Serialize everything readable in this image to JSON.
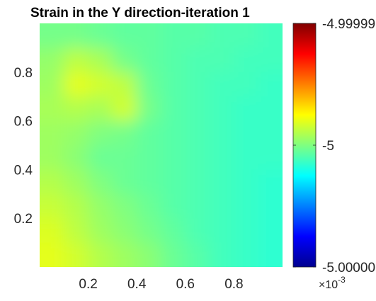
{
  "chart_data": {
    "type": "heatmap",
    "title": "Strain in the Y direction-iteration 1",
    "xlabel": "",
    "ylabel": "",
    "xlim": [
      0,
      1
    ],
    "ylim": [
      0,
      1
    ],
    "x_ticks": [
      0.2,
      0.4,
      0.6,
      0.8
    ],
    "x_tick_labels": [
      "0.2",
      "0.4",
      "0.6",
      "0.8"
    ],
    "y_ticks": [
      0.2,
      0.4,
      0.6,
      0.8
    ],
    "y_tick_labels": [
      "0.2",
      "0.4",
      "0.6",
      "0.8"
    ],
    "colormap": "jet",
    "colorbar": {
      "min": -5.00001,
      "max": -4.99999,
      "ticks": [
        -4.99999,
        -5,
        -5.00001
      ],
      "tick_labels": [
        "-4.99999",
        "-5",
        "-5.00000"
      ],
      "multiplier_base": "×10",
      "multiplier_exponent": "-3"
    },
    "field_description": "Approximate normalized field samples (0 = colorbar min, 1 = colorbar max) on a coarse grid, rows from top (y≈0.95) to bottom (y≈0.05), columns from left (x≈0.05) to right (x≈0.95).",
    "field_rows": [
      [
        0.49,
        0.49,
        0.48,
        0.47,
        0.47,
        0.46,
        0.46,
        0.45,
        0.45,
        0.44
      ],
      [
        0.52,
        0.56,
        0.54,
        0.49,
        0.47,
        0.46,
        0.45,
        0.45,
        0.44,
        0.44
      ],
      [
        0.53,
        0.6,
        0.58,
        0.56,
        0.48,
        0.46,
        0.45,
        0.44,
        0.44,
        0.43
      ],
      [
        0.54,
        0.55,
        0.54,
        0.58,
        0.49,
        0.46,
        0.45,
        0.44,
        0.43,
        0.43
      ],
      [
        0.53,
        0.52,
        0.5,
        0.49,
        0.47,
        0.46,
        0.45,
        0.44,
        0.43,
        0.43
      ],
      [
        0.53,
        0.51,
        0.48,
        0.48,
        0.47,
        0.46,
        0.45,
        0.44,
        0.43,
        0.43
      ],
      [
        0.55,
        0.53,
        0.5,
        0.48,
        0.47,
        0.46,
        0.45,
        0.44,
        0.43,
        0.42
      ],
      [
        0.57,
        0.55,
        0.52,
        0.5,
        0.48,
        0.46,
        0.45,
        0.44,
        0.43,
        0.42
      ],
      [
        0.59,
        0.56,
        0.53,
        0.51,
        0.49,
        0.47,
        0.45,
        0.44,
        0.43,
        0.42
      ],
      [
        0.6,
        0.58,
        0.55,
        0.53,
        0.51,
        0.48,
        0.46,
        0.44,
        0.43,
        0.42
      ]
    ]
  }
}
